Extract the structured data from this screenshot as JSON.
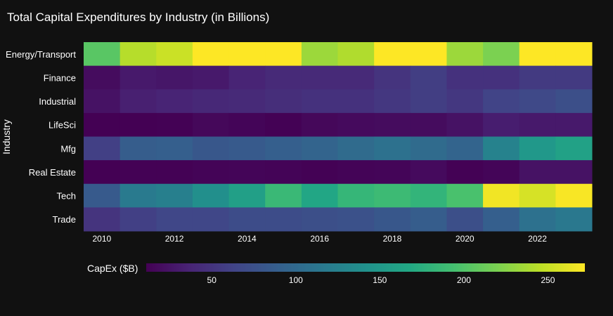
{
  "chart_data": {
    "type": "heatmap",
    "title": "Total Capital Expenditures by Industry (in Billions)",
    "xlabel": "",
    "ylabel": "Industry",
    "x": [
      2010,
      2011,
      2012,
      2013,
      2014,
      2015,
      2016,
      2017,
      2018,
      2019,
      2020,
      2021,
      2022,
      2023
    ],
    "x_ticks": [
      2010,
      2012,
      2014,
      2016,
      2018,
      2020,
      2022
    ],
    "y": [
      "Energy/Transport",
      "Finance",
      "Industrial",
      "LifeSci",
      "Mfg",
      "Real Estate",
      "Tech",
      "Trade"
    ],
    "z": [
      [
        204,
        243,
        251,
        275,
        290,
        280,
        233,
        241,
        280,
        275,
        233,
        220,
        278,
        272
      ],
      [
        19,
        29,
        27,
        29,
        37,
        42,
        42,
        42,
        50,
        58,
        48,
        48,
        55,
        55
      ],
      [
        24,
        34,
        37,
        40,
        42,
        45,
        48,
        48,
        53,
        58,
        53,
        63,
        68,
        74
      ],
      [
        11,
        11,
        12,
        16,
        14,
        12,
        16,
        18,
        19,
        19,
        24,
        32,
        29,
        29
      ],
      [
        60,
        87,
        89,
        82,
        84,
        89,
        95,
        102,
        108,
        102,
        95,
        126,
        149,
        160
      ],
      [
        11,
        12,
        12,
        13,
        14,
        13,
        12,
        13,
        14,
        18,
        12,
        14,
        24,
        24
      ],
      [
        84,
        118,
        123,
        139,
        157,
        186,
        165,
        183,
        188,
        181,
        196,
        267,
        256,
        270
      ],
      [
        50,
        60,
        66,
        66,
        71,
        71,
        74,
        76,
        82,
        87,
        74,
        89,
        108,
        115
      ]
    ],
    "colorscale": "Viridis",
    "zmin": 11,
    "zmax": 272,
    "colorbar": {
      "title": "CapEx ($B)",
      "ticks": [
        50,
        100,
        150,
        200,
        250
      ],
      "orientation": "horizontal",
      "placement": "bottom"
    },
    "background": "#111111"
  }
}
